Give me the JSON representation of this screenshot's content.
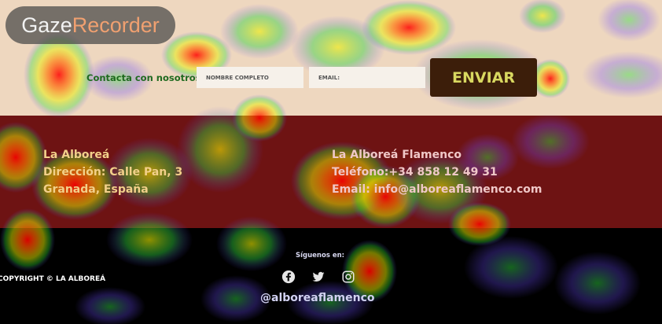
{
  "logo": {
    "part1": "Gaze",
    "part2": "Recorder"
  },
  "form": {
    "label": "Contacta con nosotros",
    "name_placeholder": "NOMBRE COMPLETO",
    "email_placeholder": "EMAIL:",
    "send_label": "ENVIAR"
  },
  "info_left": {
    "line1": "La Alboreá",
    "line2": "Dirección: Calle Pan, 3",
    "line3": "Granada, España"
  },
  "info_right": {
    "line1": "La Alboreá Flamenco",
    "line2": "Teléfono:+34 858 12 49 31",
    "line3": "Email: info@alboreaflamenco.com"
  },
  "footer": {
    "copyright": "COPYRIGHT © LA ALBOREÁ",
    "follow_label": "Síguenos en:",
    "handle": "@alboreaflamenco"
  },
  "colors": {
    "top_band": "#eed7bf",
    "mid_band": "#6e1313",
    "bottom_band": "#000000"
  },
  "icons": [
    "facebook-icon",
    "twitter-icon",
    "instagram-icon"
  ]
}
